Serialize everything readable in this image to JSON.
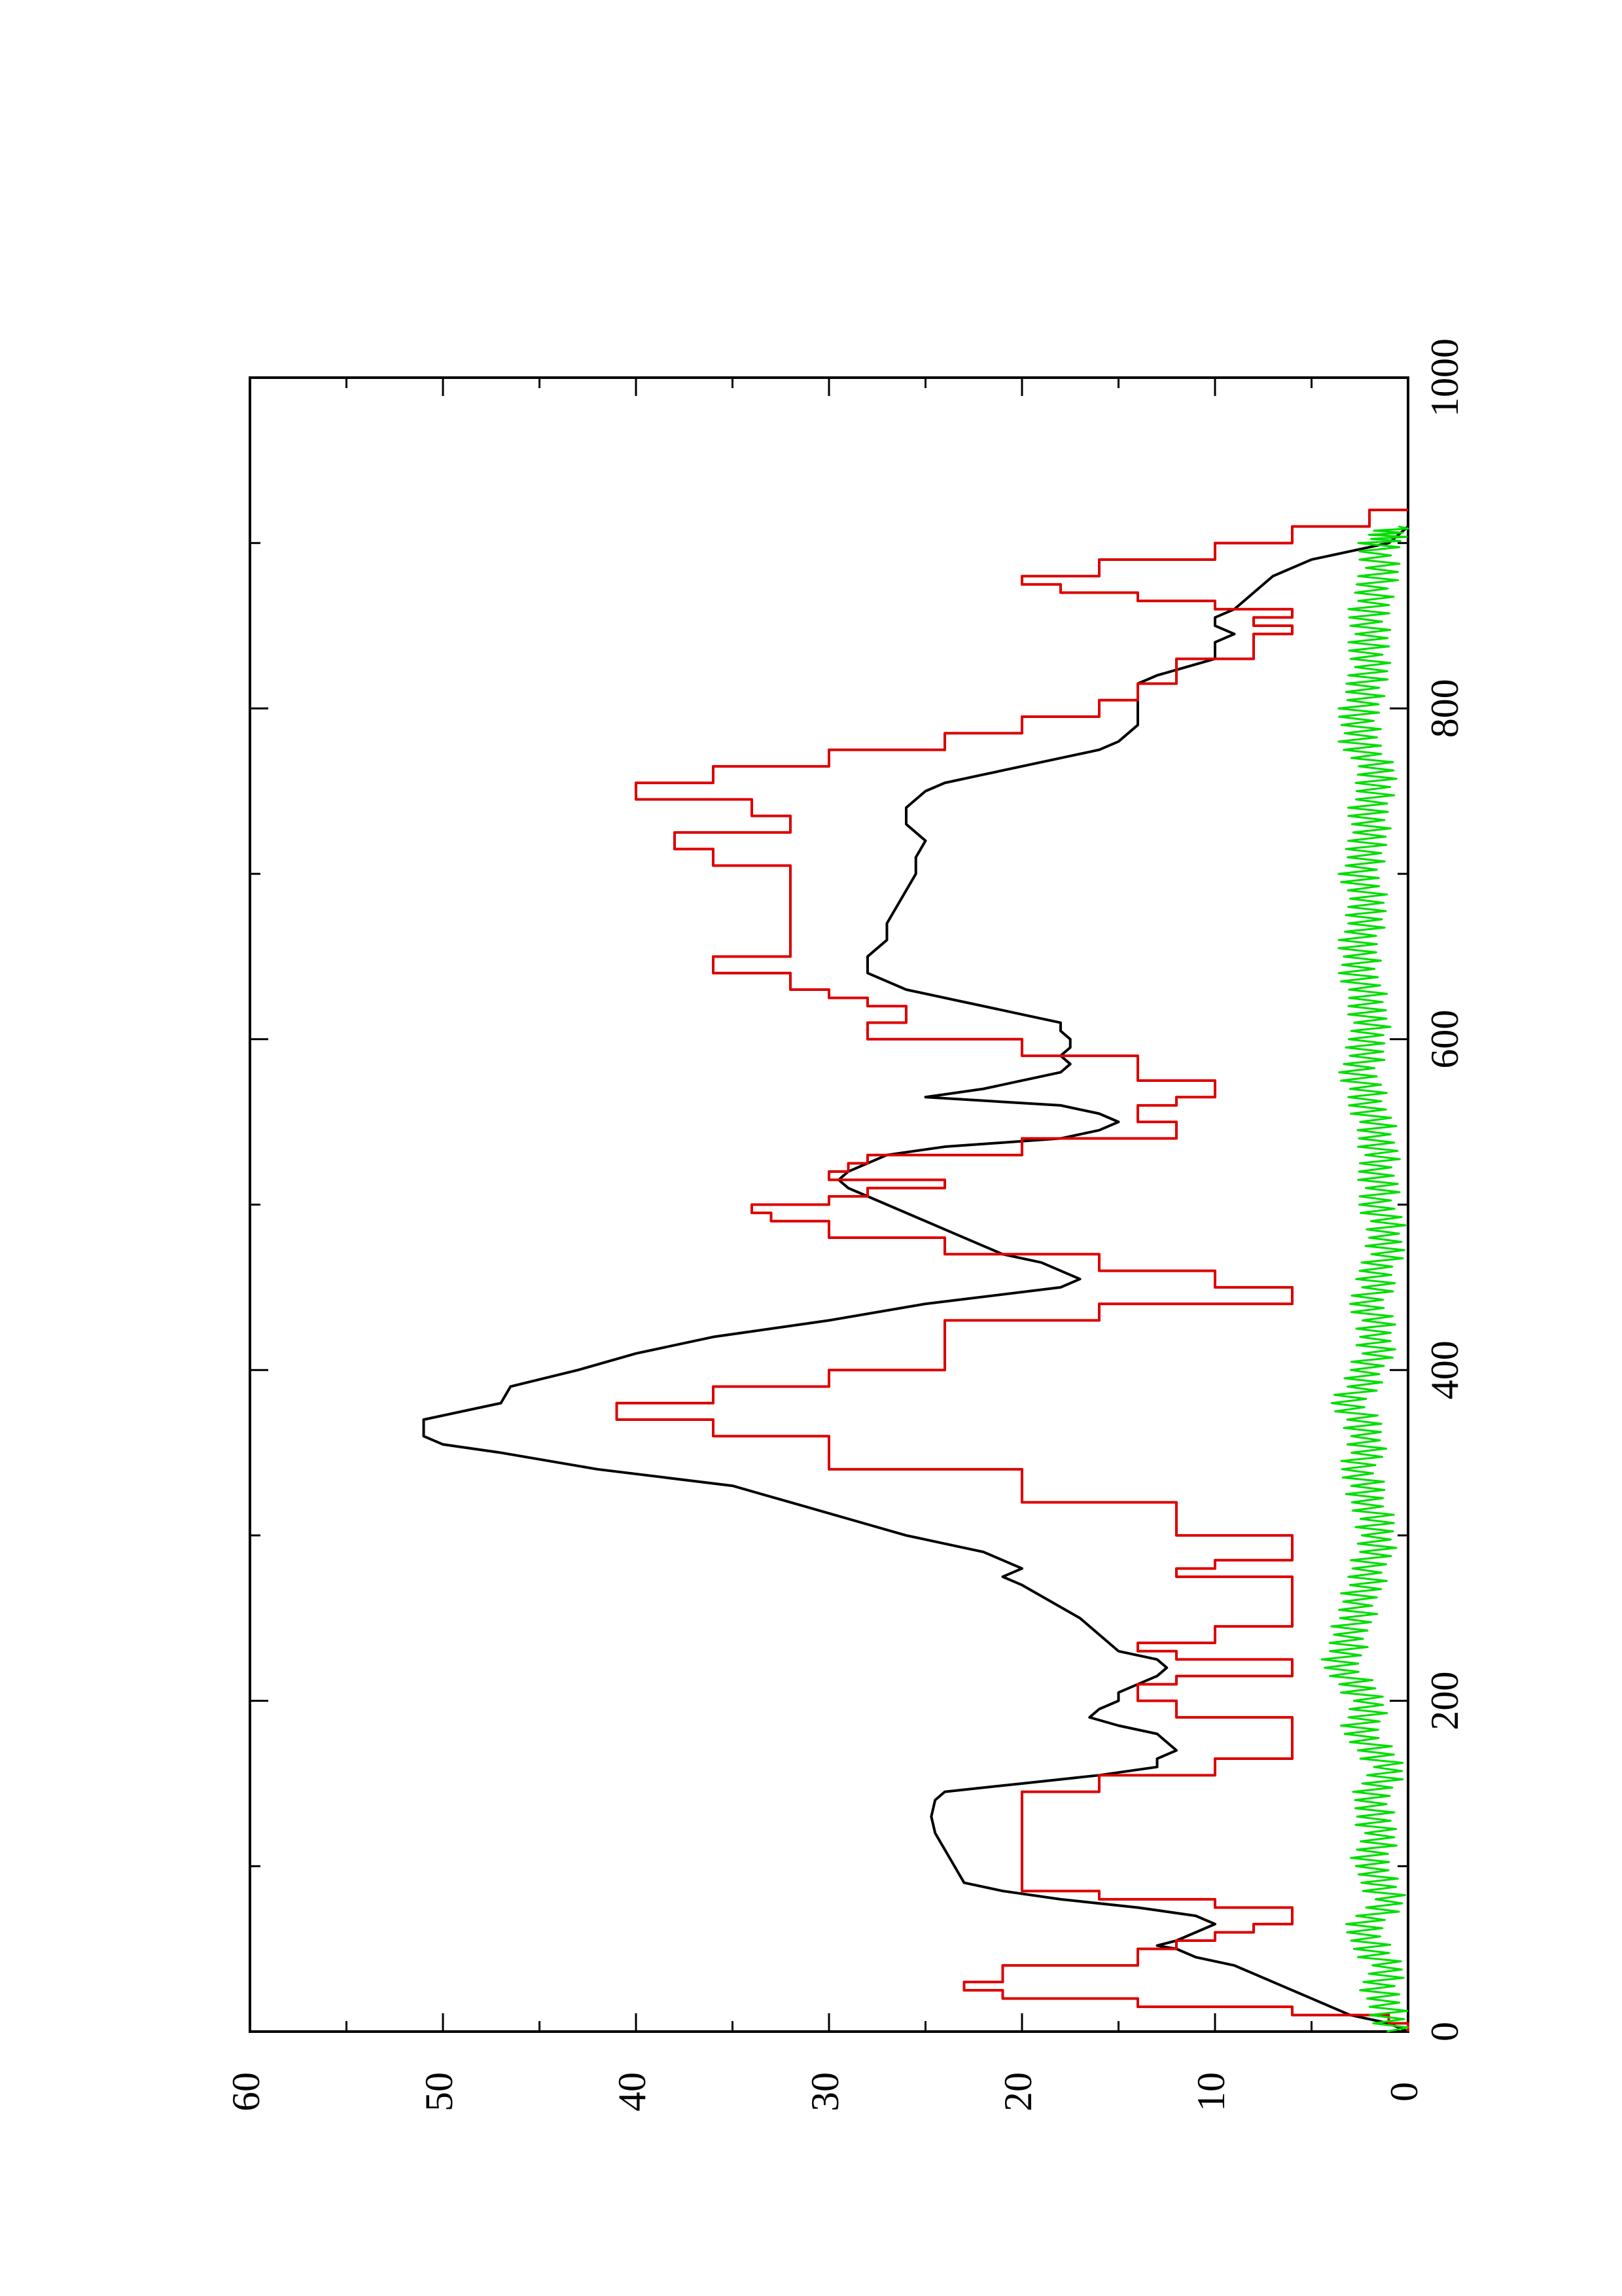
{
  "chart_data": {
    "type": "line",
    "orientation": "rotated-90-ccw",
    "title": "",
    "xlabel": "",
    "ylabel": "",
    "xlim": [
      0,
      1000
    ],
    "ylim": [
      0,
      60
    ],
    "x_ticks": [
      "0",
      "200",
      "400",
      "600",
      "800",
      "1000"
    ],
    "y_ticks": [
      "0",
      "10",
      "20",
      "30",
      "40",
      "50",
      "60"
    ],
    "grid": false,
    "legend": "none",
    "series": [
      {
        "color": "#000000",
        "style": "smooth",
        "points": [
          [
            0,
            0
          ],
          [
            5,
            1
          ],
          [
            10,
            3
          ],
          [
            20,
            5
          ],
          [
            30,
            7
          ],
          [
            40,
            9
          ],
          [
            45,
            11
          ],
          [
            50,
            12
          ],
          [
            52,
            13
          ],
          [
            55,
            12
          ],
          [
            60,
            11
          ],
          [
            65,
            10
          ],
          [
            70,
            11
          ],
          [
            75,
            14
          ],
          [
            80,
            18
          ],
          [
            85,
            21
          ],
          [
            90,
            23
          ],
          [
            100,
            23.5
          ],
          [
            110,
            24
          ],
          [
            120,
            24.5
          ],
          [
            130,
            24.7
          ],
          [
            140,
            24.5
          ],
          [
            145,
            24
          ],
          [
            150,
            20
          ],
          [
            155,
            16
          ],
          [
            160,
            13
          ],
          [
            165,
            13
          ],
          [
            170,
            12
          ],
          [
            175,
            12.5
          ],
          [
            180,
            13
          ],
          [
            185,
            15
          ],
          [
            190,
            16.5
          ],
          [
            195,
            16
          ],
          [
            200,
            15
          ],
          [
            205,
            15
          ],
          [
            210,
            14
          ],
          [
            215,
            13
          ],
          [
            220,
            12.5
          ],
          [
            225,
            13
          ],
          [
            230,
            15
          ],
          [
            240,
            16
          ],
          [
            250,
            17
          ],
          [
            260,
            18.5
          ],
          [
            270,
            20
          ],
          [
            275,
            21
          ],
          [
            280,
            20
          ],
          [
            285,
            21
          ],
          [
            290,
            22
          ],
          [
            295,
            24
          ],
          [
            300,
            26
          ],
          [
            310,
            29
          ],
          [
            320,
            32
          ],
          [
            330,
            35
          ],
          [
            340,
            42
          ],
          [
            350,
            47
          ],
          [
            355,
            50
          ],
          [
            360,
            51
          ],
          [
            370,
            51
          ],
          [
            375,
            49
          ],
          [
            380,
            47
          ],
          [
            390,
            46.5
          ],
          [
            400,
            43
          ],
          [
            410,
            40
          ],
          [
            420,
            36
          ],
          [
            430,
            30
          ],
          [
            440,
            25
          ],
          [
            450,
            18
          ],
          [
            455,
            17
          ],
          [
            460,
            18
          ],
          [
            465,
            19
          ],
          [
            470,
            21
          ],
          [
            475,
            22
          ],
          [
            480,
            23
          ],
          [
            485,
            24
          ],
          [
            490,
            25
          ],
          [
            500,
            27
          ],
          [
            505,
            28
          ],
          [
            510,
            29
          ],
          [
            515,
            29.5
          ],
          [
            520,
            29
          ],
          [
            530,
            27
          ],
          [
            535,
            24
          ],
          [
            540,
            18
          ],
          [
            545,
            16
          ],
          [
            550,
            15
          ],
          [
            555,
            16
          ],
          [
            560,
            18
          ],
          [
            565,
            25
          ],
          [
            570,
            22
          ],
          [
            575,
            20
          ],
          [
            580,
            18
          ],
          [
            585,
            17.5
          ],
          [
            590,
            18
          ],
          [
            595,
            17.5
          ],
          [
            600,
            17.5
          ],
          [
            605,
            18
          ],
          [
            610,
            18
          ],
          [
            615,
            20
          ],
          [
            620,
            22
          ],
          [
            625,
            24
          ],
          [
            630,
            26
          ],
          [
            640,
            28
          ],
          [
            650,
            28
          ],
          [
            660,
            27
          ],
          [
            670,
            27
          ],
          [
            680,
            26.5
          ],
          [
            690,
            26
          ],
          [
            700,
            25.5
          ],
          [
            710,
            25.5
          ],
          [
            720,
            25
          ],
          [
            725,
            25.5
          ],
          [
            730,
            26
          ],
          [
            740,
            26
          ],
          [
            750,
            25
          ],
          [
            755,
            24
          ],
          [
            760,
            22
          ],
          [
            770,
            18
          ],
          [
            775,
            16
          ],
          [
            780,
            15
          ],
          [
            785,
            14.5
          ],
          [
            790,
            14
          ],
          [
            800,
            14
          ],
          [
            810,
            14
          ],
          [
            815,
            14
          ],
          [
            820,
            13
          ],
          [
            830,
            10
          ],
          [
            840,
            10
          ],
          [
            845,
            9
          ],
          [
            850,
            10
          ],
          [
            855,
            10
          ],
          [
            860,
            9
          ],
          [
            870,
            8
          ],
          [
            880,
            7
          ],
          [
            890,
            5
          ],
          [
            895,
            3
          ],
          [
            900,
            1
          ],
          [
            905,
            0.5
          ],
          [
            910,
            0
          ]
        ]
      },
      {
        "color": "#dd0000",
        "style": "step",
        "points": [
          [
            0,
            0
          ],
          [
            5,
            1
          ],
          [
            10,
            6
          ],
          [
            15,
            14
          ],
          [
            20,
            21
          ],
          [
            25,
            23
          ],
          [
            30,
            21
          ],
          [
            40,
            14
          ],
          [
            50,
            12
          ],
          [
            55,
            10
          ],
          [
            60,
            8
          ],
          [
            65,
            6
          ],
          [
            70,
            6
          ],
          [
            75,
            10
          ],
          [
            80,
            16
          ],
          [
            85,
            20
          ],
          [
            135,
            20
          ],
          [
            145,
            16
          ],
          [
            155,
            10
          ],
          [
            165,
            6
          ],
          [
            185,
            6
          ],
          [
            190,
            12
          ],
          [
            200,
            14
          ],
          [
            210,
            12
          ],
          [
            215,
            6
          ],
          [
            220,
            6
          ],
          [
            225,
            12
          ],
          [
            230,
            14
          ],
          [
            235,
            10
          ],
          [
            245,
            6
          ],
          [
            270,
            6
          ],
          [
            275,
            12
          ],
          [
            280,
            10
          ],
          [
            285,
            6
          ],
          [
            290,
            6
          ],
          [
            300,
            12
          ],
          [
            320,
            20
          ],
          [
            340,
            30
          ],
          [
            360,
            36
          ],
          [
            370,
            41
          ],
          [
            380,
            36
          ],
          [
            390,
            30
          ],
          [
            400,
            24
          ],
          [
            430,
            16
          ],
          [
            440,
            6
          ],
          [
            450,
            10
          ],
          [
            460,
            16
          ],
          [
            470,
            24
          ],
          [
            480,
            30
          ],
          [
            490,
            33
          ],
          [
            495,
            34
          ],
          [
            500,
            30
          ],
          [
            505,
            28
          ],
          [
            510,
            24
          ],
          [
            515,
            30
          ],
          [
            520,
            29
          ],
          [
            525,
            28
          ],
          [
            530,
            20
          ],
          [
            540,
            12
          ],
          [
            545,
            12
          ],
          [
            550,
            14
          ],
          [
            560,
            12
          ],
          [
            565,
            10
          ],
          [
            575,
            14
          ],
          [
            590,
            20
          ],
          [
            600,
            28
          ],
          [
            610,
            26
          ],
          [
            620,
            28
          ],
          [
            625,
            30
          ],
          [
            630,
            32
          ],
          [
            640,
            36
          ],
          [
            650,
            32
          ],
          [
            700,
            32
          ],
          [
            705,
            36
          ],
          [
            715,
            38
          ],
          [
            725,
            32
          ],
          [
            735,
            34
          ],
          [
            745,
            40
          ],
          [
            755,
            36
          ],
          [
            765,
            30
          ],
          [
            775,
            24
          ],
          [
            785,
            20
          ],
          [
            795,
            16
          ],
          [
            805,
            14
          ],
          [
            815,
            12
          ],
          [
            830,
            8
          ],
          [
            845,
            6
          ],
          [
            850,
            8
          ],
          [
            855,
            6
          ],
          [
            860,
            10
          ],
          [
            865,
            14
          ],
          [
            870,
            18
          ],
          [
            875,
            20
          ],
          [
            880,
            16
          ],
          [
            890,
            10
          ],
          [
            900,
            6
          ],
          [
            910,
            2
          ],
          [
            920,
            0
          ]
        ]
      },
      {
        "color": "#00dd00",
        "style": "noise",
        "points": [
          [
            0,
            0.5
          ],
          [
            20,
            1.5
          ],
          [
            40,
            1.2
          ],
          [
            60,
            2.5
          ],
          [
            80,
            1
          ],
          [
            100,
            2
          ],
          [
            120,
            1.5
          ],
          [
            140,
            2
          ],
          [
            160,
            1
          ],
          [
            180,
            2.5
          ],
          [
            200,
            2
          ],
          [
            220,
            3.5
          ],
          [
            240,
            3
          ],
          [
            260,
            2.5
          ],
          [
            280,
            2
          ],
          [
            300,
            1.5
          ],
          [
            320,
            2
          ],
          [
            340,
            2.5
          ],
          [
            360,
            2
          ],
          [
            380,
            3
          ],
          [
            400,
            2
          ],
          [
            420,
            1.5
          ],
          [
            440,
            2
          ],
          [
            460,
            1.5
          ],
          [
            480,
            1
          ],
          [
            500,
            1.5
          ],
          [
            520,
            1.5
          ],
          [
            540,
            1.5
          ],
          [
            560,
            2
          ],
          [
            580,
            2.5
          ],
          [
            600,
            2
          ],
          [
            620,
            2
          ],
          [
            640,
            2.5
          ],
          [
            660,
            2.5
          ],
          [
            680,
            2
          ],
          [
            700,
            2.5
          ],
          [
            720,
            2
          ],
          [
            740,
            2
          ],
          [
            760,
            1.5
          ],
          [
            780,
            2.5
          ],
          [
            800,
            2.5
          ],
          [
            820,
            2
          ],
          [
            840,
            2
          ],
          [
            860,
            2
          ],
          [
            880,
            1.5
          ],
          [
            900,
            1.5
          ],
          [
            910,
            0.5
          ]
        ]
      }
    ]
  }
}
